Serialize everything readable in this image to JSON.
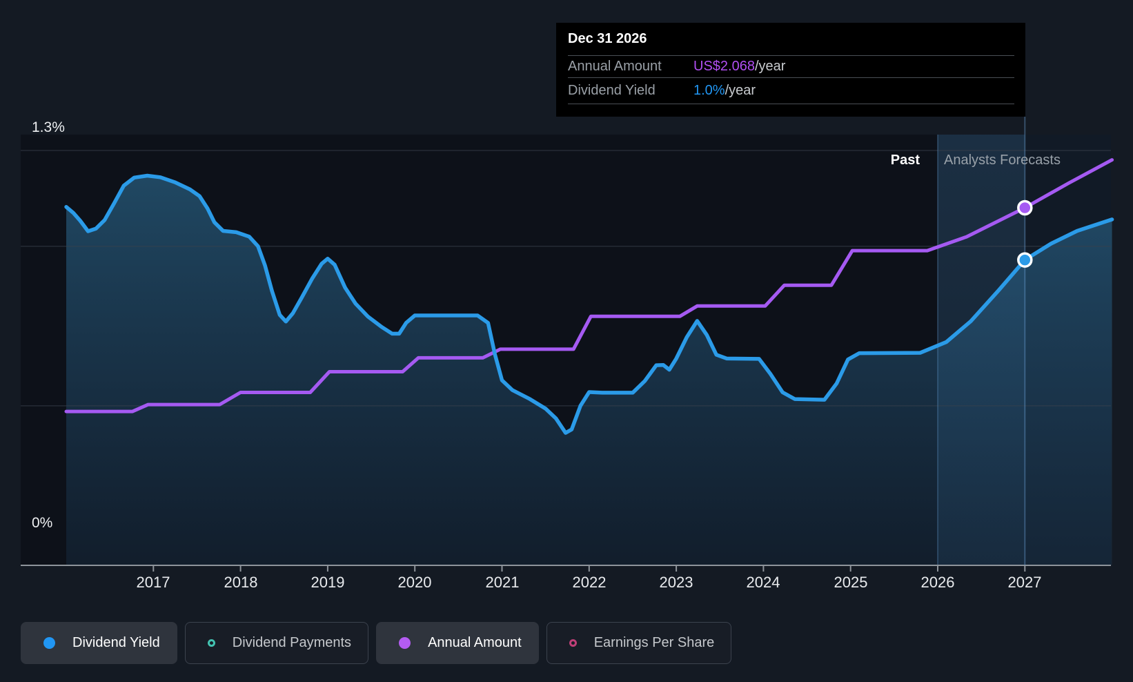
{
  "page": {
    "background": "#141a23"
  },
  "tooltip": {
    "title": "Dec 31 2026",
    "rows": [
      {
        "label": "Annual Amount",
        "value": "US$2.068",
        "suffix": "/year",
        "value_color": "#b14ff2"
      },
      {
        "label": "Dividend Yield",
        "value": "1.0%",
        "suffix": "/year",
        "value_color": "#2196f3"
      }
    ]
  },
  "chart": {
    "y_top": "1.3%",
    "y_bottom": "0%",
    "past_label": "Past",
    "forecast_label": "Analysts Forecasts"
  },
  "legend": {
    "items": [
      {
        "label": "Dividend Yield",
        "color": "#2196f3",
        "filled": true,
        "active": true
      },
      {
        "label": "Dividend Payments",
        "color": "#43c3b1",
        "filled": false,
        "active": false
      },
      {
        "label": "Annual Amount",
        "color": "#b45cf2",
        "filled": true,
        "active": true
      },
      {
        "label": "Earnings Per Share",
        "color": "#bf3f77",
        "filled": false,
        "active": false
      }
    ]
  },
  "chart_data": {
    "type": "line",
    "x_axis": {
      "ticks": [
        2017,
        2018,
        2019,
        2020,
        2021,
        2022,
        2023,
        2024,
        2025,
        2026,
        2027
      ],
      "range": [
        2016,
        2028
      ]
    },
    "y_axis": {
      "unit": "%",
      "range": [
        0,
        1.35
      ],
      "gridlines_pct": [
        1.3,
        1.0,
        0.5
      ],
      "labels": [
        "1.3%",
        "0%"
      ],
      "grid": true
    },
    "annotations": {
      "past_label": "Past",
      "forecast_label": "Analysts Forecasts",
      "forecast_start_year": 2026,
      "highlighted_date": "Dec 31 2026"
    },
    "legend_position": "bottom",
    "series": [
      {
        "name": "Dividend Yield",
        "unit": "%",
        "color": "#2b9be8",
        "area": true,
        "points": [
          [
            2016.0,
            1.123
          ],
          [
            2016.08,
            1.105
          ],
          [
            2016.16,
            1.08
          ],
          [
            2016.25,
            1.047
          ],
          [
            2016.34,
            1.055
          ],
          [
            2016.44,
            1.082
          ],
          [
            2016.55,
            1.135
          ],
          [
            2016.66,
            1.19
          ],
          [
            2016.78,
            1.215
          ],
          [
            2016.93,
            1.221
          ],
          [
            2017.08,
            1.216
          ],
          [
            2017.25,
            1.2
          ],
          [
            2017.42,
            1.178
          ],
          [
            2017.53,
            1.157
          ],
          [
            2017.62,
            1.119
          ],
          [
            2017.7,
            1.075
          ],
          [
            2017.8,
            1.048
          ],
          [
            2017.95,
            1.044
          ],
          [
            2018.1,
            1.03
          ],
          [
            2018.2,
            1.0
          ],
          [
            2018.28,
            0.94
          ],
          [
            2018.36,
            0.86
          ],
          [
            2018.45,
            0.785
          ],
          [
            2018.52,
            0.764
          ],
          [
            2018.6,
            0.79
          ],
          [
            2018.7,
            0.838
          ],
          [
            2018.82,
            0.898
          ],
          [
            2018.93,
            0.945
          ],
          [
            2019.0,
            0.961
          ],
          [
            2019.08,
            0.942
          ],
          [
            2019.2,
            0.87
          ],
          [
            2019.32,
            0.82
          ],
          [
            2019.46,
            0.78
          ],
          [
            2019.62,
            0.747
          ],
          [
            2019.74,
            0.726
          ],
          [
            2019.82,
            0.726
          ],
          [
            2019.9,
            0.76
          ],
          [
            2020.0,
            0.783
          ],
          [
            2020.72,
            0.783
          ],
          [
            2020.84,
            0.76
          ],
          [
            2020.92,
            0.66
          ],
          [
            2021.0,
            0.58
          ],
          [
            2021.12,
            0.549
          ],
          [
            2021.32,
            0.521
          ],
          [
            2021.5,
            0.491
          ],
          [
            2021.62,
            0.46
          ],
          [
            2021.73,
            0.415
          ],
          [
            2021.8,
            0.426
          ],
          [
            2021.9,
            0.5
          ],
          [
            2022.0,
            0.543
          ],
          [
            2022.15,
            0.541
          ],
          [
            2022.5,
            0.541
          ],
          [
            2022.64,
            0.578
          ],
          [
            2022.77,
            0.627
          ],
          [
            2022.85,
            0.628
          ],
          [
            2022.92,
            0.613
          ],
          [
            2023.0,
            0.648
          ],
          [
            2023.12,
            0.715
          ],
          [
            2023.24,
            0.766
          ],
          [
            2023.35,
            0.722
          ],
          [
            2023.46,
            0.66
          ],
          [
            2023.58,
            0.648
          ],
          [
            2023.95,
            0.647
          ],
          [
            2024.08,
            0.6
          ],
          [
            2024.22,
            0.542
          ],
          [
            2024.36,
            0.521
          ],
          [
            2024.7,
            0.519
          ],
          [
            2024.84,
            0.57
          ],
          [
            2024.97,
            0.645
          ],
          [
            2025.1,
            0.665
          ],
          [
            2025.8,
            0.666
          ],
          [
            2026.1,
            0.7
          ],
          [
            2026.38,
            0.765
          ],
          [
            2026.7,
            0.862
          ],
          [
            2027.0,
            0.957
          ],
          [
            2027.3,
            1.008
          ],
          [
            2027.6,
            1.048
          ],
          [
            2028.0,
            1.084
          ]
        ]
      },
      {
        "name": "Annual Amount",
        "unit": "US$/year",
        "color": "#a55af2",
        "area": false,
        "usd_to_pct_axis": 0.5418,
        "points": [
          [
            2016.0,
            0.89
          ],
          [
            2016.76,
            0.89
          ],
          [
            2016.94,
            0.93
          ],
          [
            2017.76,
            0.93
          ],
          [
            2018.0,
            1.0
          ],
          [
            2018.8,
            1.0
          ],
          [
            2019.02,
            1.12
          ],
          [
            2019.86,
            1.12
          ],
          [
            2020.04,
            1.2
          ],
          [
            2020.78,
            1.2
          ],
          [
            2020.98,
            1.25
          ],
          [
            2021.82,
            1.25
          ],
          [
            2022.02,
            1.44
          ],
          [
            2023.04,
            1.44
          ],
          [
            2023.24,
            1.5
          ],
          [
            2024.02,
            1.5
          ],
          [
            2024.24,
            1.62
          ],
          [
            2024.78,
            1.62
          ],
          [
            2025.02,
            1.82
          ],
          [
            2025.88,
            1.82
          ],
          [
            2026.33,
            1.9
          ],
          [
            2027.0,
            2.068
          ],
          [
            2027.5,
            2.21
          ],
          [
            2028.0,
            2.345
          ]
        ]
      }
    ],
    "markers": [
      {
        "series": 0,
        "year": 2027,
        "value": 0.957
      },
      {
        "series": 1,
        "year": 2027,
        "value": 2.068
      }
    ]
  }
}
